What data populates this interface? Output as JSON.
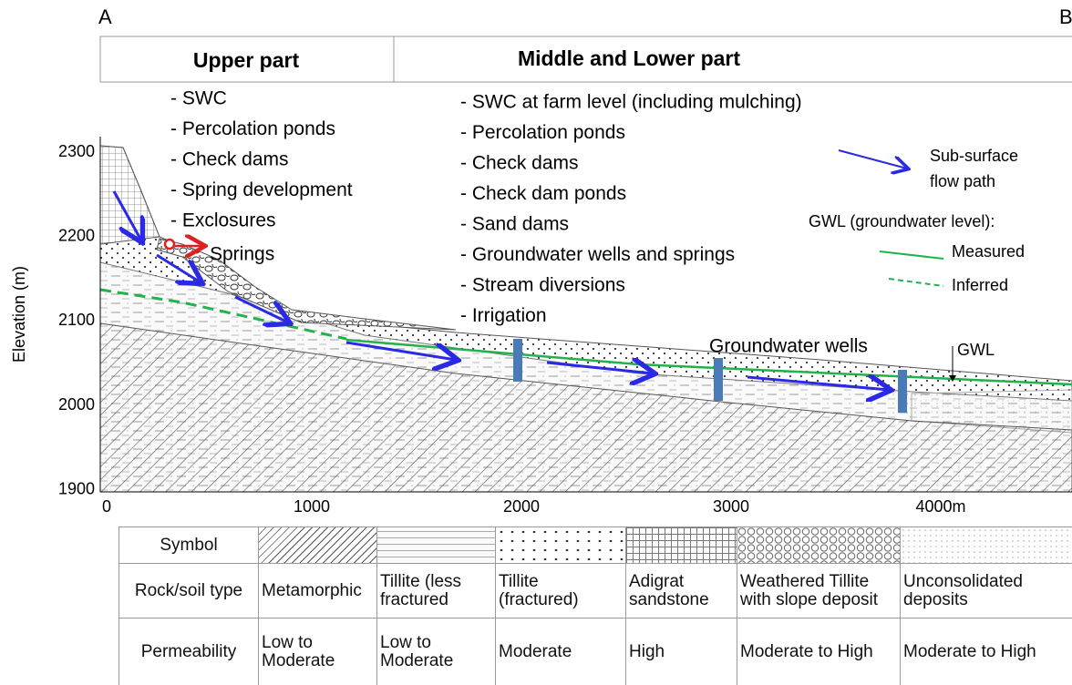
{
  "corner_labels": {
    "left": "A",
    "right": "B"
  },
  "header": {
    "left": "Upper part",
    "right": "Middle and Lower part"
  },
  "axis": {
    "label": "Elevation (m)",
    "yticks": [
      "2300",
      "2200",
      "2100",
      "2000",
      "1900"
    ],
    "xticks": [
      "0",
      "1000",
      "2000",
      "3000",
      "4000m"
    ]
  },
  "upper_measures": [
    "- SWC",
    "- Percolation ponds",
    "- Check dams",
    "- Spring development",
    "- Exclosures"
  ],
  "middle_lower_measures": [
    "- SWC at farm level (including  mulching)",
    "- Percolation ponds",
    "- Check dams",
    "- Check dam ponds",
    "- Sand dams",
    "- Groundwater wells  and springs",
    "- Stream diversions",
    "- Irrigation"
  ],
  "annotations": {
    "springs": "Springs",
    "wells": "Groundwater wells",
    "gwl": "GWL"
  },
  "legend": {
    "flow": [
      "Sub-surface",
      "flow path"
    ],
    "gwl_title": "GWL (groundwater level):",
    "measured": "Measured",
    "inferred": "Inferred"
  },
  "table": {
    "rows": [
      [
        "Symbol"
      ],
      [
        "Rock/soil type",
        "Metamorphic",
        "Tillite (less fractured",
        "Tillite (fractured)",
        "Adigrat sandstone",
        "Weathered Tillite with slope deposit",
        "Unconsolidated deposits"
      ],
      [
        "Permeability",
        "Low to Moderate",
        "Low to Moderate",
        "Moderate",
        "High",
        "Moderate to High",
        "Moderate to High"
      ]
    ]
  }
}
